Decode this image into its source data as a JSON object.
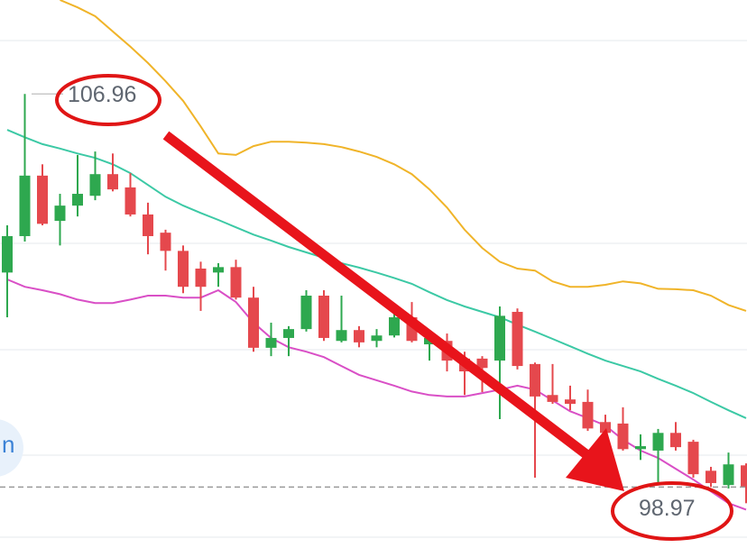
{
  "chart_data": {
    "type": "candlestick",
    "ylim": [
      97.73,
      108.87
    ],
    "up_color": "#2ea84f",
    "down_color": "#e5484d",
    "open": [
      103.33,
      104.07,
      105.3,
      104.38,
      104.69,
      104.89,
      105.33,
      105.06,
      104.51,
      104.14,
      103.77,
      103.41,
      103.33,
      103.44,
      102.82,
      101.8,
      102.0,
      102.18,
      102.86,
      101.94,
      102.16,
      101.94,
      102.05,
      102.42,
      101.87,
      101.94,
      101.58,
      101.58,
      101.54,
      102.53,
      101.47,
      100.84,
      100.75,
      100.7,
      100.29,
      100.26,
      99.74,
      99.71,
      100.07,
      99.89,
      99.3,
      99.01,
      99.41
    ],
    "high": [
      104.29,
      106.96,
      105.53,
      104.93,
      105.72,
      105.79,
      105.75,
      105.35,
      104.75,
      104.2,
      103.88,
      103.55,
      103.52,
      103.59,
      103.04,
      102.31,
      102.24,
      102.97,
      102.97,
      102.86,
      102.24,
      102.18,
      102.64,
      102.73,
      102.05,
      102.09,
      101.72,
      101.63,
      102.64,
      102.6,
      101.5,
      101.47,
      101.03,
      100.95,
      100.44,
      100.59,
      100.04,
      100.15,
      100.29,
      99.93,
      99.38,
      99.67,
      99.45
    ],
    "low": [
      102.42,
      103.96,
      104.29,
      103.88,
      104.47,
      104.8,
      104.98,
      104.47,
      103.7,
      103.37,
      102.91,
      102.55,
      103.04,
      102.78,
      101.72,
      101.63,
      101.63,
      102.13,
      101.94,
      101.91,
      101.81,
      101.81,
      102.01,
      101.91,
      101.54,
      101.32,
      100.84,
      100.9,
      100.35,
      101.36,
      99.16,
      100.66,
      100.53,
      100.11,
      99.89,
      99.71,
      99.52,
      99.01,
      99.71,
      99.16,
      98.97,
      98.94,
      98.64
    ],
    "close": [
      104.07,
      105.3,
      104.32,
      104.69,
      104.93,
      105.33,
      105.02,
      104.51,
      104.07,
      103.77,
      103.04,
      103.04,
      103.44,
      102.82,
      101.8,
      102.0,
      102.18,
      102.86,
      102.0,
      102.16,
      101.91,
      102.05,
      102.42,
      101.94,
      102.0,
      101.54,
      101.32,
      101.39,
      102.45,
      101.43,
      100.81,
      100.7,
      100.66,
      100.16,
      100.07,
      99.74,
      99.8,
      100.07,
      99.78,
      99.23,
      99.05,
      99.43,
      98.97
    ],
    "lines": [
      {
        "color": "#f0b429",
        "values": [
          null,
          null,
          null,
          108.87,
          108.72,
          108.54,
          108.23,
          107.92,
          107.59,
          107.22,
          106.82,
          106.3,
          105.75,
          105.72,
          105.9,
          105.99,
          105.99,
          105.97,
          105.94,
          105.88,
          105.79,
          105.68,
          105.53,
          105.33,
          105.02,
          104.65,
          104.2,
          103.83,
          103.55,
          103.41,
          103.37,
          103.15,
          103.04,
          103.04,
          103.08,
          103.15,
          103.11,
          103.0,
          102.99,
          102.97,
          102.86,
          102.67,
          102.55
        ]
      },
      {
        "color": "#3cc9a5",
        "values": [
          106.23,
          106.08,
          105.94,
          105.85,
          105.75,
          105.66,
          105.53,
          105.35,
          105.11,
          104.87,
          104.69,
          104.54,
          104.4,
          104.25,
          104.1,
          103.98,
          103.85,
          103.74,
          103.63,
          103.52,
          103.43,
          103.33,
          103.22,
          103.1,
          102.93,
          102.77,
          102.64,
          102.53,
          102.42,
          102.27,
          102.13,
          101.98,
          101.83,
          101.68,
          101.54,
          101.43,
          101.32,
          101.17,
          101.03,
          100.88,
          100.7,
          100.53,
          100.37
        ]
      },
      {
        "color": "#d94fc6",
        "values": [
          103.19,
          103.04,
          102.97,
          102.89,
          102.78,
          102.71,
          102.71,
          102.78,
          102.86,
          102.86,
          102.82,
          102.82,
          102.97,
          102.73,
          102.31,
          102.0,
          101.81,
          101.72,
          101.61,
          101.43,
          101.25,
          101.14,
          101.03,
          100.91,
          100.84,
          100.81,
          100.81,
          100.88,
          100.95,
          101.03,
          100.95,
          100.73,
          100.51,
          100.37,
          100.22,
          99.93,
          99.71,
          99.56,
          99.34,
          99.12,
          98.88,
          98.64,
          98.51
        ]
      }
    ],
    "max_label": 106.96,
    "last_price": 98.97,
    "side_text": "n"
  }
}
